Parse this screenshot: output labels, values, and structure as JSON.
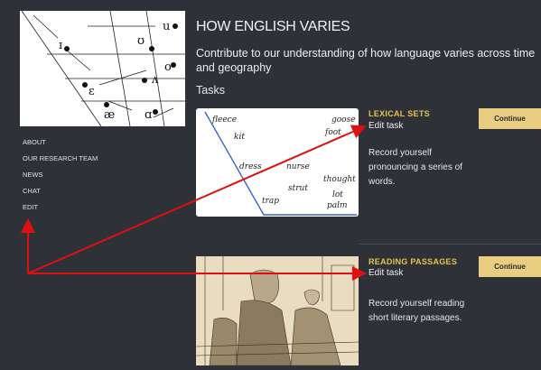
{
  "sidebar": {
    "vowel_chart": {
      "symbols": [
        "u",
        "ʊ",
        "o",
        "ɪ",
        "ʌ",
        "ɛ",
        "æ",
        "ɑ"
      ]
    },
    "menu": [
      "ABOUT",
      "OUR RESEARCH TEAM",
      "NEWS",
      "CHAT",
      "EDIT"
    ]
  },
  "header": {
    "title": "HOW ENGLISH VARIES",
    "subtitle": "Contribute to our understanding of how language varies across time and geography"
  },
  "tasks_heading": "Tasks",
  "tasks": [
    {
      "title": "LEXICAL SETS",
      "edit_link": "Edit task",
      "description": "Record yourself pronouncing a series of words.",
      "button": "Continue",
      "image_words": [
        "fleece",
        "goose",
        "kit",
        "foot",
        "dress",
        "nurse",
        "thought",
        "strut",
        "lot",
        "trap",
        "palm"
      ]
    },
    {
      "title": "READING PASSAGES",
      "edit_link": "Edit task",
      "description": "Record yourself reading short literary passages.",
      "button": "Continue"
    }
  ]
}
